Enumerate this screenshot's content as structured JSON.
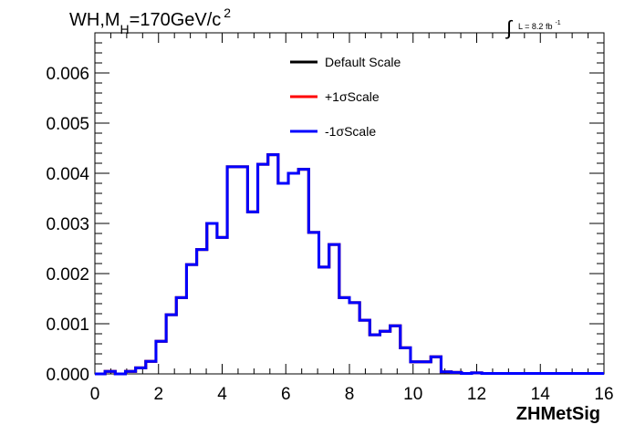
{
  "chart_data": {
    "type": "line",
    "title_parts": {
      "prefix": "WH,M",
      "subscript": "H",
      "mid": "=170GeV/c",
      "superscript": "2"
    },
    "lumi": {
      "label": "L = 8.2 fb",
      "superscript": "-1"
    },
    "xlabel": "ZHMetSig",
    "ylabel": "",
    "xlim": [
      0,
      16
    ],
    "ylim": [
      0,
      0.0068
    ],
    "xticks": [
      0,
      2,
      4,
      6,
      8,
      10,
      12,
      14,
      16
    ],
    "xtick_labels": [
      "0",
      "2",
      "4",
      "6",
      "8",
      "10",
      "12",
      "14",
      "16"
    ],
    "yticks": [
      0,
      0.001,
      0.002,
      0.003,
      0.004,
      0.005,
      0.006
    ],
    "ytick_labels": [
      "0.000",
      "0.001",
      "0.002",
      "0.003",
      "0.004",
      "0.005",
      "0.006"
    ],
    "legend_position": "top-center",
    "grid": false,
    "bin_width": 0.32,
    "bin_start": 0,
    "series": [
      {
        "name": "Default Scale",
        "color": "#000000",
        "values": [
          0,
          5e-05,
          0,
          5e-05,
          0.00012,
          0.00025,
          0.00065,
          0.00118,
          0.00152,
          0.00218,
          0.00248,
          0.003,
          0.00272,
          0.00413,
          0.00413,
          0.00323,
          0.00418,
          0.00437,
          0.0038,
          0.004,
          0.00408,
          0.00282,
          0.00213,
          0.00258,
          0.00152,
          0.00142,
          0.00107,
          0.00078,
          0.00085,
          0.00096,
          0.00052,
          0.00024,
          0.00024,
          0.00034,
          4e-05,
          3e-05,
          1e-05,
          2e-05,
          1e-05,
          1e-05,
          1e-05,
          1e-05,
          1e-05,
          1e-05,
          1e-05,
          1e-05,
          1e-05,
          1e-05,
          1e-05,
          1e-05
        ]
      },
      {
        "name": "+1σScale",
        "color": "#ff0000",
        "values": [
          0,
          5e-05,
          0,
          5e-05,
          0.00012,
          0.00025,
          0.00065,
          0.00118,
          0.00152,
          0.00218,
          0.00248,
          0.003,
          0.00272,
          0.00413,
          0.00413,
          0.00323,
          0.00418,
          0.00437,
          0.0038,
          0.004,
          0.00408,
          0.00282,
          0.00213,
          0.00258,
          0.00152,
          0.00142,
          0.00107,
          0.00078,
          0.00085,
          0.00096,
          0.00052,
          0.00024,
          0.00024,
          0.00034,
          4e-05,
          3e-05,
          1e-05,
          2e-05,
          1e-05,
          1e-05,
          1e-05,
          1e-05,
          1e-05,
          1e-05,
          1e-05,
          1e-05,
          1e-05,
          1e-05,
          1e-05,
          1e-05
        ]
      },
      {
        "name": "-1σScale",
        "color": "#0000ff",
        "values": [
          0,
          5e-05,
          0,
          5e-05,
          0.00012,
          0.00025,
          0.00065,
          0.00118,
          0.00152,
          0.00218,
          0.00248,
          0.003,
          0.00272,
          0.00413,
          0.00413,
          0.00323,
          0.00418,
          0.00437,
          0.0038,
          0.004,
          0.00408,
          0.00282,
          0.00213,
          0.00258,
          0.00152,
          0.00142,
          0.00107,
          0.00078,
          0.00085,
          0.00096,
          0.00052,
          0.00024,
          0.00024,
          0.00034,
          4e-05,
          3e-05,
          1e-05,
          2e-05,
          1e-05,
          1e-05,
          1e-05,
          1e-05,
          1e-05,
          1e-05,
          1e-05,
          1e-05,
          1e-05,
          1e-05,
          1e-05,
          1e-05
        ]
      }
    ]
  }
}
